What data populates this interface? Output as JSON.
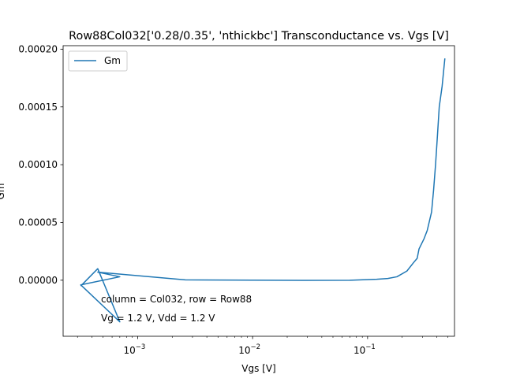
{
  "chart_data": {
    "type": "line",
    "title": "Row88Col032['0.28/0.35', 'nthickbc'] Transconductance vs. Vgs [V]",
    "xlabel": "Vgs [V]",
    "ylabel": "Gm",
    "xscale": "log",
    "xlim": [
      0.000225,
      0.57
    ],
    "ylim": [
      -4.85e-05,
      0.000203
    ],
    "x_ticks": [
      {
        "value": 0.001,
        "label": "10^-3",
        "base": "10",
        "exp": "−3"
      },
      {
        "value": 0.01,
        "label": "10^-2",
        "base": "10",
        "exp": "−2"
      },
      {
        "value": 0.1,
        "label": "10^-1",
        "base": "10",
        "exp": "−1"
      }
    ],
    "y_ticks": [
      {
        "value": 0.0,
        "label": "0.00000"
      },
      {
        "value": 5e-05,
        "label": "0.00005"
      },
      {
        "value": 0.0001,
        "label": "0.00010"
      },
      {
        "value": 0.00015,
        "label": "0.00015"
      },
      {
        "value": 0.0002,
        "label": "0.00020"
      }
    ],
    "grid": false,
    "legend_position": "top-left",
    "series": [
      {
        "name": "Gm",
        "color": "#1f77b4",
        "points": [
          [
            0.00032,
            -5e-06
          ],
          [
            0.00045,
            1e-05
          ],
          [
            0.0007,
            -3.6e-05
          ],
          [
            0.00032,
            -4e-06
          ],
          [
            0.0007,
            3e-06
          ],
          [
            0.00045,
            7e-06
          ],
          [
            0.0026,
            3e-07
          ],
          [
            0.01,
            1e-07
          ],
          [
            0.03,
            -1e-07
          ],
          [
            0.07,
            0.0
          ],
          [
            0.12,
            8e-07
          ],
          [
            0.15,
            1.5e-06
          ],
          [
            0.18,
            3e-06
          ],
          [
            0.22,
            8e-06
          ],
          [
            0.25,
            1.5e-05
          ],
          [
            0.27,
            1.9e-05
          ],
          [
            0.28,
            2.7e-05
          ],
          [
            0.31,
            3.6e-05
          ],
          [
            0.33,
            4.3e-05
          ],
          [
            0.36,
            5.9e-05
          ],
          [
            0.375,
            7.8e-05
          ],
          [
            0.39,
            0.0001
          ],
          [
            0.405,
            0.000125
          ],
          [
            0.42,
            0.00015
          ],
          [
            0.445,
            0.000168
          ],
          [
            0.47,
            0.000192
          ]
        ]
      }
    ],
    "annotations": [
      "column = Col032, row = Row88",
      "Vg = 1.2 V, Vdd = 1.2 V"
    ]
  }
}
